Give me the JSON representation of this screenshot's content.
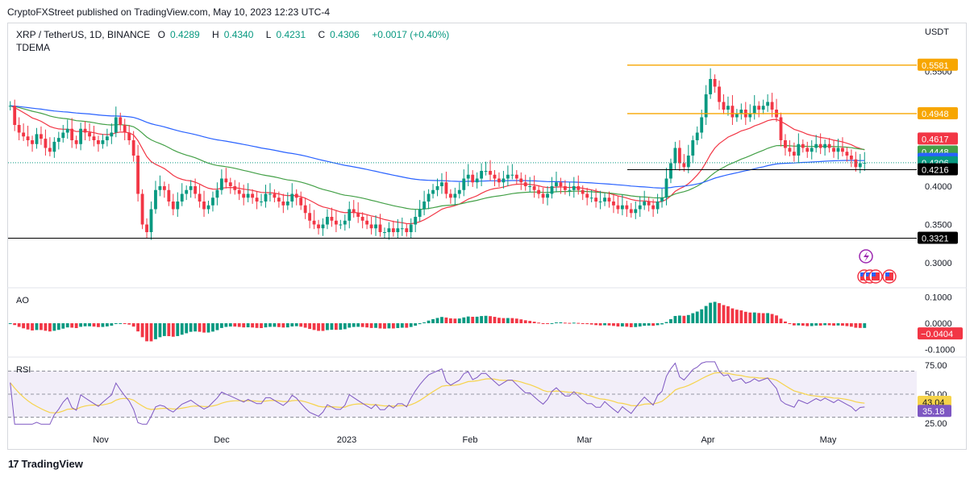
{
  "header": {
    "publisher_line": "CryptoFXStreet published on TradingView.com, May 10, 2023 12:23 UTC-4"
  },
  "legend": {
    "symbol": "XRP / TetherUS, 1D, BINANCE",
    "o_label": "O",
    "o": "0.4289",
    "h_label": "H",
    "h": "0.4340",
    "l_label": "L",
    "l": "0.4231",
    "c_label": "C",
    "c": "0.4306",
    "change": "+0.0017 (+0.40%)",
    "indicator": "TDEMA"
  },
  "footer": {
    "brand": "TradingView",
    "logo_glyph": "17"
  },
  "icons": [
    "lightning-icon",
    "us-flag-icon"
  ],
  "colors": {
    "up": "#089981",
    "down": "#f23645",
    "blue_ma": "#2962ff",
    "green_ma": "#43a047",
    "red_ma": "#f23645",
    "orange_line": "#f7a600",
    "rsi": "#7e57c2",
    "rsi_ma": "#f6d34a"
  },
  "chart_data": [
    {
      "type": "candlestick",
      "title": "XRP / TetherUS, 1D, BINANCE",
      "axis_unit_label": "USDT",
      "x_tick_labels": [
        "Nov",
        "Dec",
        "2023",
        "Feb",
        "Mar",
        "Apr",
        "May"
      ],
      "y_tick_labels": [
        "0.3000",
        "0.3500",
        "0.4000",
        "0.5500"
      ],
      "ylim": [
        0.28,
        0.58
      ],
      "price_levels": [
        {
          "label": "0.5581",
          "value": 0.5581,
          "color": "#f7a600"
        },
        {
          "label": "0.4948",
          "value": 0.4948,
          "color": "#f7a600"
        },
        {
          "label": "0.4617",
          "value": 0.4617,
          "color": "#f23645"
        },
        {
          "label": "0.4448",
          "value": 0.4448,
          "color": "#43a047"
        },
        {
          "label": "0.4351",
          "value": 0.4351,
          "color": "#2962ff"
        },
        {
          "label": "0.4306",
          "value": 0.4306,
          "color": "#089981"
        },
        {
          "label": "0.4216",
          "value": 0.4216,
          "color": "#000000"
        },
        {
          "label": "0.3321",
          "value": 0.3321,
          "color": "#000000"
        }
      ],
      "close_series": [
        0.505,
        0.48,
        0.47,
        0.465,
        0.46,
        0.455,
        0.468,
        0.462,
        0.45,
        0.445,
        0.458,
        0.463,
        0.47,
        0.475,
        0.46,
        0.455,
        0.475,
        0.47,
        0.465,
        0.46,
        0.455,
        0.46,
        0.465,
        0.47,
        0.49,
        0.48,
        0.47,
        0.46,
        0.44,
        0.39,
        0.35,
        0.34,
        0.37,
        0.395,
        0.4,
        0.395,
        0.38,
        0.37,
        0.38,
        0.39,
        0.395,
        0.4,
        0.39,
        0.38,
        0.37,
        0.375,
        0.385,
        0.395,
        0.41,
        0.405,
        0.4,
        0.395,
        0.39,
        0.385,
        0.39,
        0.385,
        0.38,
        0.38,
        0.39,
        0.39,
        0.385,
        0.38,
        0.375,
        0.38,
        0.39,
        0.385,
        0.375,
        0.365,
        0.355,
        0.35,
        0.345,
        0.35,
        0.36,
        0.355,
        0.35,
        0.35,
        0.355,
        0.37,
        0.365,
        0.36,
        0.355,
        0.35,
        0.345,
        0.35,
        0.34,
        0.34,
        0.345,
        0.34,
        0.345,
        0.345,
        0.34,
        0.35,
        0.36,
        0.37,
        0.38,
        0.39,
        0.395,
        0.4,
        0.405,
        0.39,
        0.385,
        0.39,
        0.395,
        0.41,
        0.415,
        0.405,
        0.41,
        0.42,
        0.42,
        0.415,
        0.41,
        0.405,
        0.41,
        0.415,
        0.415,
        0.41,
        0.405,
        0.4,
        0.4,
        0.395,
        0.39,
        0.385,
        0.39,
        0.4,
        0.405,
        0.4,
        0.395,
        0.395,
        0.4,
        0.395,
        0.39,
        0.385,
        0.385,
        0.38,
        0.38,
        0.385,
        0.38,
        0.375,
        0.37,
        0.375,
        0.37,
        0.365,
        0.37,
        0.375,
        0.38,
        0.375,
        0.37,
        0.38,
        0.385,
        0.41,
        0.43,
        0.45,
        0.43,
        0.425,
        0.44,
        0.46,
        0.47,
        0.49,
        0.52,
        0.54,
        0.53,
        0.51,
        0.5,
        0.505,
        0.49,
        0.495,
        0.5,
        0.49,
        0.495,
        0.505,
        0.5,
        0.505,
        0.51,
        0.5,
        0.49,
        0.46,
        0.45,
        0.445,
        0.44,
        0.455,
        0.45,
        0.445,
        0.45,
        0.455,
        0.45,
        0.455,
        0.45,
        0.445,
        0.45,
        0.445,
        0.44,
        0.435,
        0.425,
        0.43,
        0.4306
      ],
      "moving_averages": [
        {
          "name": "red",
          "color": "#f23645"
        },
        {
          "name": "green",
          "color": "#43a047"
        },
        {
          "name": "blue",
          "color": "#2962ff"
        }
      ]
    },
    {
      "type": "bar",
      "title": "AO",
      "y_tick_labels": [
        "0.1000",
        "0.0000",
        "-0.1000"
      ],
      "ylim": [
        -0.12,
        0.12
      ],
      "last_label": "−0.0404",
      "values_note": "histogram"
    },
    {
      "type": "line",
      "title": "RSI",
      "y_tick_labels": [
        "75.00",
        "50.00",
        "25.00"
      ],
      "ylim": [
        20,
        80
      ],
      "bands": [
        70,
        50,
        30
      ],
      "series": [
        {
          "name": "RSI",
          "last_label": "35.18",
          "last": 35.18,
          "color": "#7e57c2"
        },
        {
          "name": "RSI MA",
          "last_label": "43.04",
          "last": 43.04,
          "color": "#f6d34a"
        }
      ]
    }
  ]
}
